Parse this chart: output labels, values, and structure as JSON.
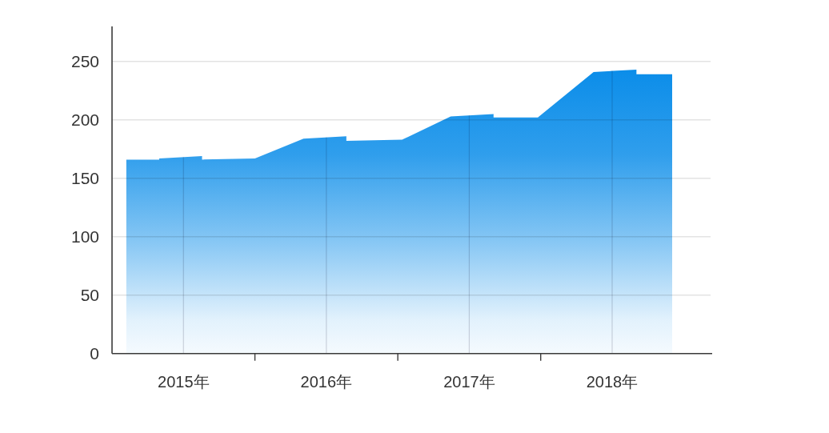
{
  "chart_data": {
    "type": "area",
    "x": [
      2015.1,
      2015.33,
      2015.33,
      2015.63,
      2015.63,
      2016.0,
      2016.34,
      2016.64,
      2016.64,
      2017.03,
      2017.37,
      2017.67,
      2017.67,
      2017.98,
      2018.37,
      2018.67,
      2018.67,
      2018.92
    ],
    "values": [
      166,
      166,
      167,
      169,
      166,
      167,
      184,
      186,
      182,
      183,
      203,
      205,
      202,
      202,
      241,
      243,
      239,
      239
    ],
    "color": "#0b8de9",
    "xlim": [
      2015,
      2019.2
    ],
    "xticks": [
      {
        "value": 2015.5,
        "label": "2015年"
      },
      {
        "value": 2016,
        "label": null
      },
      {
        "value": 2016.5,
        "label": "2016年"
      },
      {
        "value": 2017,
        "label": null
      },
      {
        "value": 2017.5,
        "label": "2017年"
      },
      {
        "value": 2018,
        "label": null
      },
      {
        "value": 2018.5,
        "label": "2018年"
      }
    ],
    "ylim": [
      0,
      280
    ],
    "yticks": [
      0,
      50,
      100,
      150,
      200,
      250
    ],
    "grid": true
  }
}
